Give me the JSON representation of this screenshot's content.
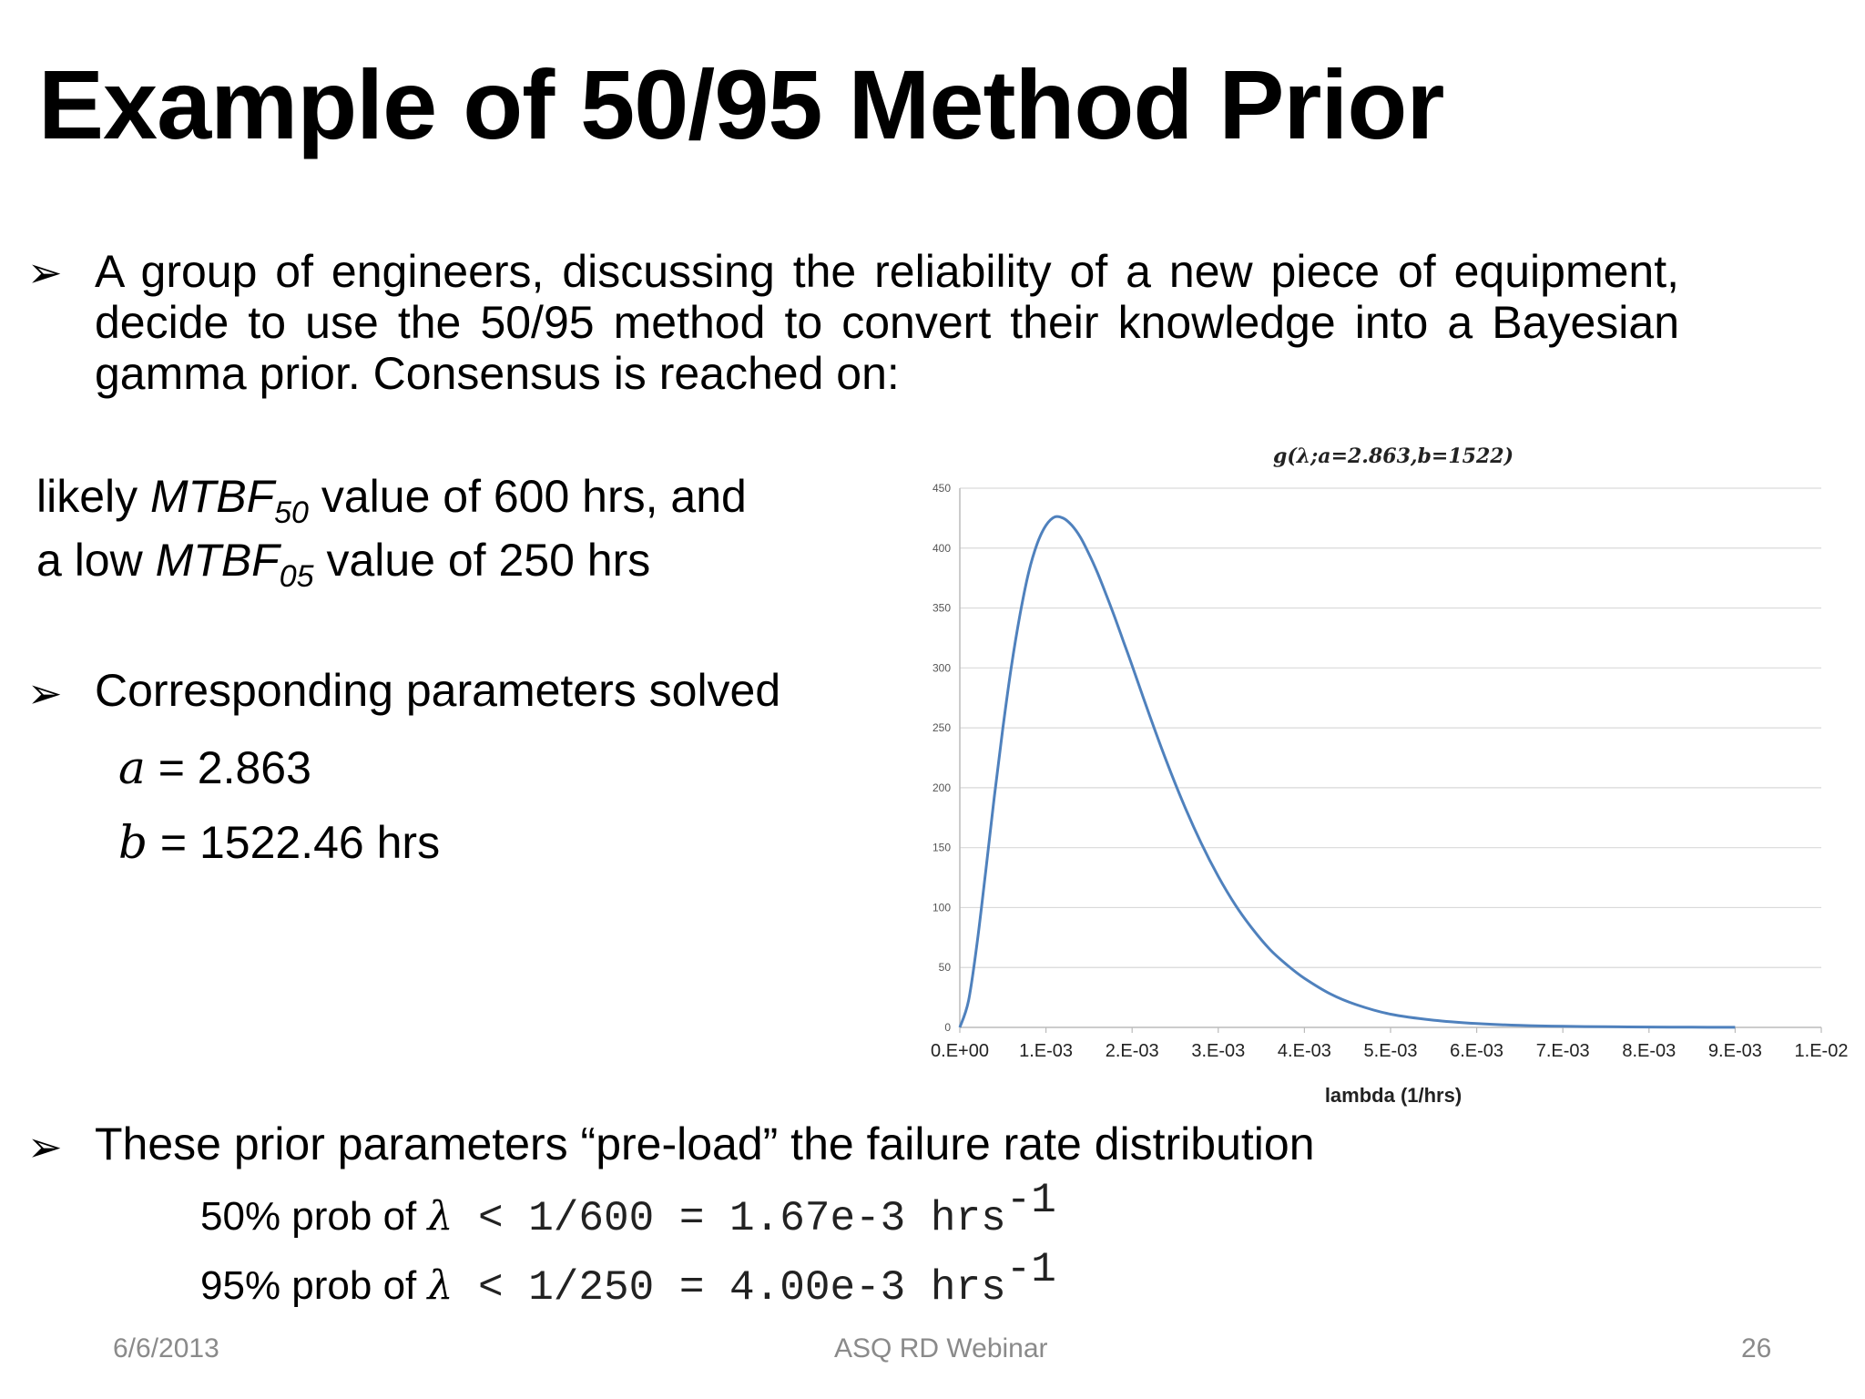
{
  "slide": {
    "title": "Example of 50/95 Method Prior",
    "bullet_glyph": "➢",
    "intro": "A group of engineers, discussing the reliability of a new piece of equipment, decide to use the 50/95 method to convert their knowledge into a Bayesian gamma prior. Consensus is reached on:",
    "mtbf_lines": [
      {
        "prefix": "likely ",
        "term": "MTBF",
        "sub": "50",
        "suffix": " value of 600 hrs, and"
      },
      {
        "prefix": "a low ",
        "term": "MTBF",
        "sub": "05",
        "suffix": " value of 250 hrs"
      }
    ],
    "params_heading": "Corresponding parameters solved",
    "params": [
      {
        "var": "a",
        "text": " = 2.863"
      },
      {
        "var": "b",
        "text": " = 1522.46 hrs"
      }
    ],
    "preload_text": "These prior parameters “pre-load” the failure rate distribution",
    "probs": [
      {
        "prefix": "50% prob of ",
        "lambda": "λ",
        "expr": " < 1/600 = 1.67e-3 hrs",
        "sup": "-1"
      },
      {
        "prefix": "95% prob of ",
        "lambda": "λ",
        "expr": " < 1/250 = 4.00e-3 hrs",
        "sup": "-1"
      }
    ],
    "footer": {
      "date": "6/6/2013",
      "center": "ASQ RD Webinar",
      "page": "26"
    }
  },
  "chart_data": {
    "type": "line",
    "title": "g(λ;a=2.863,b=1522)",
    "xlabel": "lambda (1/hrs)",
    "ylabel": "",
    "xlim": [
      0,
      0.01
    ],
    "ylim": [
      0,
      450
    ],
    "x_ticks": [
      "0.E+00",
      "1.E-03",
      "2.E-03",
      "3.E-03",
      "4.E-03",
      "5.E-03",
      "6.E-03",
      "7.E-03",
      "8.E-03",
      "9.E-03",
      "1.E-02"
    ],
    "y_ticks": [
      "0",
      "50",
      "100",
      "150",
      "200",
      "250",
      "300",
      "350",
      "400",
      "450"
    ],
    "grid": "horizontal",
    "legend": "none",
    "line_color": "#4f81bd",
    "series": [
      {
        "x": [
          0,
          0.0001,
          0.0002,
          0.0003,
          0.0004,
          0.0005,
          0.0006,
          0.0007,
          0.0008,
          0.0009,
          0.001,
          0.0011,
          0.0012,
          0.0013,
          0.0014,
          0.0015,
          0.0016,
          0.0017,
          0.0018,
          0.0019,
          0.002,
          0.0022,
          0.0024,
          0.0026,
          0.0028,
          0.003,
          0.0032,
          0.0034,
          0.0036,
          0.0038,
          0.004,
          0.0043,
          0.0046,
          0.005,
          0.0055,
          0.006,
          0.0065,
          0.007,
          0.0075,
          0.008,
          0.0085,
          0.009
        ],
        "y": [
          0,
          22,
          70,
          130,
          192,
          250,
          302,
          345,
          380,
          404,
          419,
          426,
          425,
          419,
          409,
          395,
          379,
          361,
          342,
          322,
          302,
          261,
          222,
          186,
          154,
          126,
          102,
          82,
          65,
          52,
          41,
          28,
          19,
          11,
          6,
          3.2,
          1.7,
          0.9,
          0.5,
          0.3,
          0.15,
          0.1
        ]
      }
    ]
  }
}
